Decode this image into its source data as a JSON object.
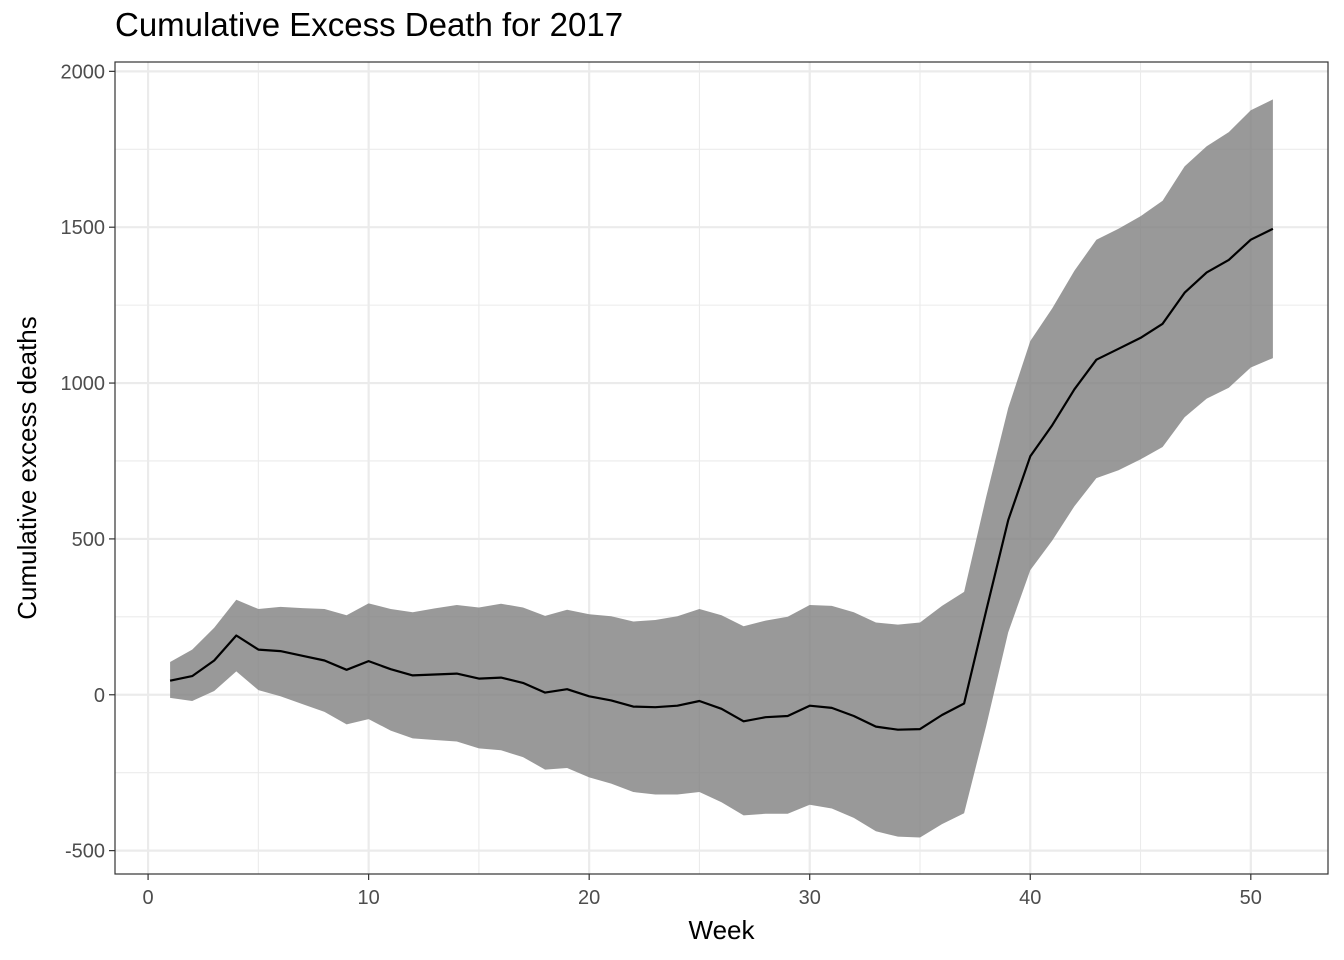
{
  "chart_data": {
    "type": "area",
    "title": "Cumulative Excess Death for 2017",
    "xlabel": "Week",
    "ylabel": "Cumulative excess deaths",
    "xlim": [
      -1.5,
      53.5
    ],
    "ylim": [
      -575,
      2030
    ],
    "x_ticks": [
      0,
      10,
      20,
      30,
      40,
      50
    ],
    "y_ticks": [
      -500,
      0,
      500,
      1000,
      1500,
      2000
    ],
    "x_tick_labels": [
      "0",
      "10",
      "20",
      "30",
      "40",
      "50"
    ],
    "y_tick_labels": [
      "-500",
      "0",
      "500",
      "1000",
      "1500",
      "2000"
    ],
    "grid": true,
    "legend": "none",
    "colors": {
      "line": "#000000",
      "ribbon": "#7f7f7f",
      "grid": "#ebebeb",
      "border": "#333333"
    },
    "x": [
      1,
      2,
      3,
      4,
      5,
      6,
      7,
      8,
      9,
      10,
      11,
      12,
      13,
      14,
      15,
      16,
      17,
      18,
      19,
      20,
      21,
      22,
      23,
      24,
      25,
      26,
      27,
      28,
      29,
      30,
      31,
      32,
      33,
      34,
      35,
      36,
      37,
      38,
      39,
      40,
      41,
      42,
      43,
      44,
      45,
      46,
      47,
      48,
      49,
      50,
      51
    ],
    "series": [
      {
        "values": [
          45,
          60,
          110,
          190,
          145,
          140,
          125,
          110,
          80,
          108,
          82,
          62,
          65,
          68,
          52,
          55,
          38,
          7,
          18,
          -5,
          -18,
          -38,
          -40,
          -35,
          -20,
          -45,
          -85,
          -72,
          -68,
          -35,
          -42,
          -68,
          -102,
          -112,
          -110,
          -65,
          -28,
          270,
          560,
          765,
          865,
          980,
          1075,
          1110,
          1145,
          1190,
          1290,
          1355,
          1395,
          1460,
          1495
        ],
        "lower": [
          -10,
          -20,
          12,
          75,
          15,
          -5,
          -30,
          -55,
          -95,
          -78,
          -115,
          -140,
          -145,
          -150,
          -172,
          -178,
          -200,
          -240,
          -235,
          -265,
          -285,
          -312,
          -320,
          -320,
          -312,
          -345,
          -387,
          -382,
          -382,
          -353,
          -365,
          -395,
          -438,
          -455,
          -458,
          -415,
          -380,
          -100,
          200,
          400,
          495,
          605,
          695,
          720,
          755,
          795,
          890,
          950,
          985,
          1050,
          1080
        ],
        "upper": [
          105,
          145,
          215,
          305,
          275,
          282,
          278,
          275,
          255,
          293,
          275,
          265,
          277,
          288,
          280,
          292,
          280,
          253,
          273,
          258,
          252,
          235,
          240,
          252,
          275,
          255,
          220,
          238,
          250,
          288,
          285,
          265,
          232,
          225,
          232,
          285,
          330,
          635,
          920,
          1135,
          1240,
          1360,
          1460,
          1495,
          1535,
          1585,
          1695,
          1760,
          1805,
          1875,
          1910
        ]
      }
    ]
  }
}
